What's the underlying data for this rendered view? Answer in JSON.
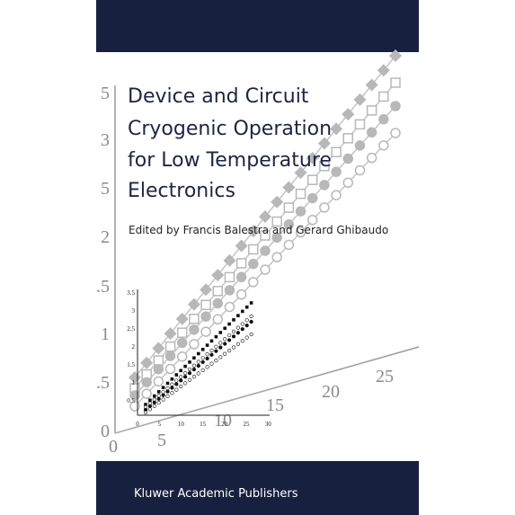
{
  "title_lines": [
    "Device and Circuit",
    "Cryogenic Operation",
    "for Low Temperature",
    "Electronics"
  ],
  "editors": "Edited by Francis Balestra and Gerard Ghibaudo",
  "publisher": "Kluwer Academic Publishers",
  "cover_art": {
    "y_axis_labels": [
      "5",
      "3",
      "5",
      "2",
      ".5",
      "1",
      ".5",
      "0"
    ],
    "x_axis_labels": [
      "0",
      "5",
      "10",
      "15",
      "20",
      "25"
    ],
    "inset_y_labels": [
      "3.5",
      "3",
      "2.5",
      "2",
      "1.5",
      "1",
      "0.5"
    ],
    "inset_x_labels": [
      "0",
      "5",
      "10",
      "15",
      "20",
      "25",
      "30"
    ]
  }
}
